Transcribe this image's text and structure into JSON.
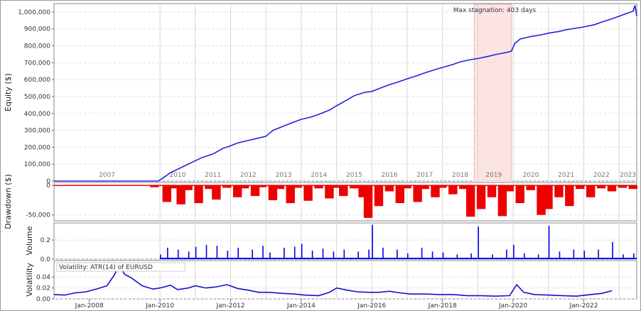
{
  "chart_data": [
    {
      "type": "line",
      "panel": "equity",
      "ylabel": "Equity ($)",
      "ylim": [
        0,
        1050000
      ],
      "yticks": [
        0,
        100000,
        200000,
        300000,
        400000,
        500000,
        600000,
        700000,
        800000,
        900000,
        1000000
      ],
      "ytick_labels": [
        "0",
        "100,000",
        "200,000",
        "300,000",
        "400,000",
        "500,000",
        "600,000",
        "700,000",
        "800,000",
        "900,000",
        "1,000,000"
      ],
      "xlim": [
        2007.0,
        2023.5
      ],
      "year_labels": [
        "2007",
        "2010",
        "2011",
        "2012",
        "2013",
        "2014",
        "2015",
        "2016",
        "2017",
        "2018",
        "2019",
        "2020",
        "2021",
        "2022",
        "2023"
      ],
      "year_boundaries": [
        2010,
        2011,
        2012,
        2013,
        2014,
        2015,
        2016,
        2017,
        2018,
        2019,
        2020,
        2021,
        2022,
        2023
      ],
      "annotation": "Max stagnation: 403 days",
      "stagnation": [
        2018.9,
        2019.95
      ],
      "color": "#2222dd",
      "x": [
        2007.0,
        2009.95,
        2010.1,
        2010.3,
        2010.6,
        2010.9,
        2011.2,
        2011.5,
        2011.8,
        2011.95,
        2012.2,
        2012.5,
        2012.8,
        2013.0,
        2013.2,
        2013.5,
        2013.8,
        2014.0,
        2014.3,
        2014.5,
        2014.8,
        2015.0,
        2015.3,
        2015.5,
        2015.8,
        2016.0,
        2016.3,
        2016.5,
        2016.8,
        2017.0,
        2017.3,
        2017.5,
        2017.8,
        2018.0,
        2018.3,
        2018.5,
        2018.8,
        2019.0,
        2019.3,
        2019.5,
        2019.8,
        2019.95,
        2020.05,
        2020.2,
        2020.5,
        2020.8,
        2021.0,
        2021.3,
        2021.5,
        2021.8,
        2022.0,
        2022.3,
        2022.5,
        2022.8,
        2023.0,
        2023.2,
        2023.4,
        2023.45,
        2023.5
      ],
      "y": [
        0,
        0,
        20000,
        50000,
        80000,
        110000,
        140000,
        160000,
        195000,
        205000,
        225000,
        240000,
        255000,
        265000,
        300000,
        325000,
        350000,
        365000,
        380000,
        395000,
        420000,
        445000,
        480000,
        505000,
        525000,
        530000,
        555000,
        570000,
        590000,
        605000,
        625000,
        640000,
        660000,
        672000,
        690000,
        705000,
        718000,
        725000,
        738000,
        748000,
        760000,
        768000,
        815000,
        840000,
        855000,
        865000,
        875000,
        885000,
        895000,
        905000,
        912000,
        925000,
        940000,
        960000,
        975000,
        990000,
        1005000,
        1040000,
        975000
      ]
    },
    {
      "type": "area",
      "panel": "drawdown",
      "ylabel": "Drawdown ($)",
      "ylim": [
        -60000,
        5000
      ],
      "yticks": [
        0,
        -50000
      ],
      "ytick_labels": [
        "0",
        "-50,000"
      ],
      "color": "#ee0000",
      "x": [
        2009.95,
        2010.3,
        2010.5,
        2010.7,
        2010.9,
        2011.2,
        2011.5,
        2011.7,
        2012.0,
        2012.3,
        2012.5,
        2012.8,
        2013.0,
        2013.3,
        2013.5,
        2013.8,
        2014.0,
        2014.3,
        2014.6,
        2014.9,
        2015.1,
        2015.3,
        2015.6,
        2015.85,
        2016.0,
        2016.3,
        2016.6,
        2016.9,
        2017.1,
        2017.4,
        2017.6,
        2017.9,
        2018.1,
        2018.4,
        2018.7,
        2018.9,
        2019.2,
        2019.5,
        2019.8,
        2020.0,
        2020.3,
        2020.6,
        2020.9,
        2021.1,
        2021.4,
        2021.7,
        2022.0,
        2022.3,
        2022.6,
        2022.9,
        2023.2,
        2023.5
      ],
      "y": [
        -3000,
        -28000,
        -5000,
        -32000,
        -8000,
        -30000,
        -6000,
        -24000,
        -4000,
        -20000,
        -5000,
        -18000,
        -3000,
        -25000,
        -6000,
        -30000,
        -4000,
        -26000,
        -5000,
        -22000,
        -4000,
        -18000,
        -5000,
        -20000,
        -55000,
        -35000,
        -10000,
        -30000,
        -5000,
        -28000,
        -6000,
        -20000,
        -4000,
        -15000,
        -6000,
        -53000,
        -40000,
        -20000,
        -52000,
        -10000,
        -30000,
        -8000,
        -50000,
        -40000,
        -20000,
        -35000,
        -6000,
        -20000,
        -5000,
        -10000,
        -4000,
        -6000
      ]
    },
    {
      "type": "bar",
      "panel": "volume",
      "ylabel": "Volume",
      "ylim": [
        0,
        0.38
      ],
      "yticks": [
        0,
        0.2
      ],
      "ytick_labels": [
        "0.0",
        "0.2"
      ],
      "color": "#0000ee",
      "x": [
        2010.0,
        2010.2,
        2010.5,
        2010.8,
        2011.0,
        2011.3,
        2011.6,
        2011.9,
        2012.2,
        2012.6,
        2012.9,
        2013.1,
        2013.5,
        2013.8,
        2014.0,
        2014.3,
        2014.6,
        2014.9,
        2015.2,
        2015.6,
        2015.9,
        2016.0,
        2016.3,
        2016.7,
        2017.0,
        2017.4,
        2017.7,
        2018.0,
        2018.4,
        2018.8,
        2019.0,
        2019.4,
        2019.8,
        2020.0,
        2020.3,
        2020.7,
        2021.0,
        2021.3,
        2021.7,
        2022.0,
        2022.4,
        2022.8,
        2023.1,
        2023.4
      ],
      "y": [
        0.05,
        0.12,
        0.1,
        0.08,
        0.13,
        0.15,
        0.14,
        0.09,
        0.12,
        0.1,
        0.14,
        0.07,
        0.12,
        0.13,
        0.16,
        0.09,
        0.11,
        0.08,
        0.1,
        0.08,
        0.1,
        0.36,
        0.12,
        0.1,
        0.06,
        0.12,
        0.08,
        0.07,
        0.05,
        0.06,
        0.34,
        0.05,
        0.1,
        0.15,
        0.06,
        0.05,
        0.35,
        0.08,
        0.1,
        0.09,
        0.1,
        0.18,
        0.05,
        0.06
      ]
    },
    {
      "type": "line",
      "panel": "volatility",
      "ylabel": "Volatility",
      "legend": "Volatility: ATR(14) of EURUSD",
      "ylim": [
        0,
        0.07
      ],
      "yticks": [
        0,
        0.02,
        0.04
      ],
      "ytick_labels": [
        "0.00",
        "0.02",
        "0.04"
      ],
      "color": "#1111cc",
      "x": [
        2007.0,
        2007.3,
        2007.6,
        2007.9,
        2008.2,
        2008.5,
        2008.7,
        2008.85,
        2009.0,
        2009.2,
        2009.5,
        2009.8,
        2010.0,
        2010.3,
        2010.5,
        2010.8,
        2011.0,
        2011.3,
        2011.6,
        2011.9,
        2012.2,
        2012.5,
        2012.8,
        2013.1,
        2013.5,
        2013.8,
        2014.1,
        2014.5,
        2014.8,
        2015.0,
        2015.3,
        2015.6,
        2015.9,
        2016.2,
        2016.5,
        2016.8,
        2017.1,
        2017.5,
        2017.9,
        2018.3,
        2018.7,
        2019.1,
        2019.5,
        2019.9,
        2020.1,
        2020.3,
        2020.6,
        2021.0,
        2021.4,
        2021.8,
        2022.2,
        2022.5,
        2022.8
      ],
      "y": [
        0.008,
        0.007,
        0.011,
        0.013,
        0.018,
        0.024,
        0.043,
        0.062,
        0.045,
        0.038,
        0.024,
        0.018,
        0.02,
        0.025,
        0.017,
        0.02,
        0.024,
        0.02,
        0.022,
        0.026,
        0.019,
        0.016,
        0.012,
        0.012,
        0.01,
        0.009,
        0.007,
        0.006,
        0.012,
        0.02,
        0.016,
        0.013,
        0.012,
        0.012,
        0.014,
        0.011,
        0.009,
        0.009,
        0.008,
        0.008,
        0.006,
        0.006,
        0.005,
        0.006,
        0.026,
        0.012,
        0.008,
        0.007,
        0.006,
        0.005,
        0.008,
        0.01,
        0.015
      ]
    }
  ],
  "x_axis": {
    "ticks": [
      2008,
      2010,
      2012,
      2014,
      2016,
      2018,
      2020,
      2022
    ],
    "labels": [
      "Jan-2008",
      "Jan-2010",
      "Jan-2012",
      "Jan-2014",
      "Jan-2016",
      "Jan-2018",
      "Jan-2020",
      "Jan-2022"
    ]
  }
}
